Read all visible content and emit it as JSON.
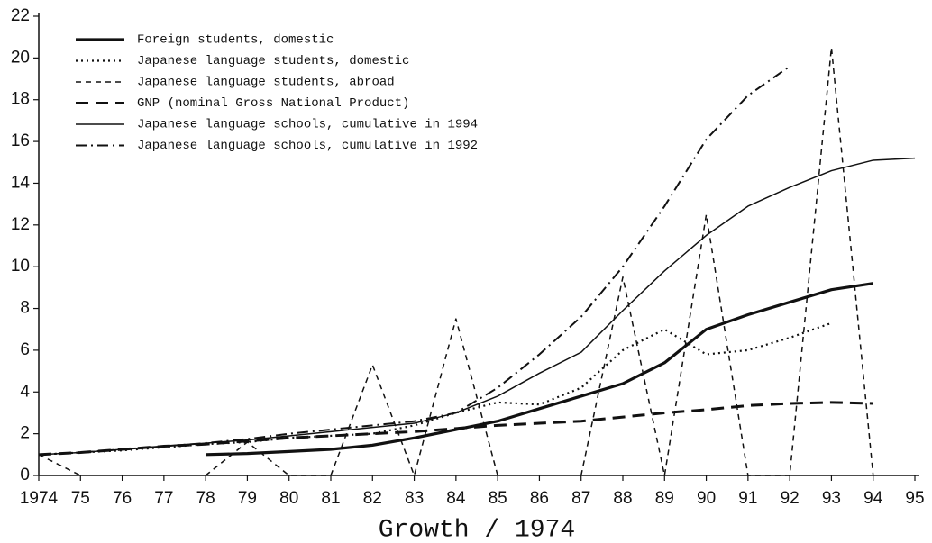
{
  "chart_data": {
    "type": "line",
    "xlabel": "Growth / 1974",
    "categories": [
      "1974",
      "75",
      "76",
      "77",
      "78",
      "79",
      "80",
      "81",
      "82",
      "83",
      "84",
      "85",
      "86",
      "87",
      "88",
      "89",
      "90",
      "91",
      "92",
      "93",
      "94",
      "95"
    ],
    "ylim": [
      0,
      22
    ],
    "yticks": [
      0,
      2,
      4,
      6,
      8,
      10,
      12,
      14,
      16,
      18,
      20,
      22
    ],
    "legend": "upper-left",
    "series": [
      {
        "name": "Foreign students, domestic",
        "color": "#111111",
        "style": "thick-solid",
        "values": [
          null,
          null,
          null,
          null,
          1.0,
          1.05,
          1.15,
          1.25,
          1.45,
          1.8,
          2.2,
          2.6,
          3.2,
          3.8,
          4.4,
          5.4,
          7.0,
          7.7,
          8.3,
          8.9,
          9.2,
          null
        ]
      },
      {
        "name": "Japanese language students, domestic",
        "color": "#111111",
        "style": "dotted",
        "values": [
          1.0,
          1.1,
          1.2,
          1.35,
          1.5,
          1.6,
          1.8,
          1.9,
          2.0,
          2.4,
          3.0,
          3.5,
          3.4,
          4.2,
          6.0,
          7.0,
          5.8,
          6.0,
          6.6,
          7.3,
          null,
          null
        ]
      },
      {
        "name": "Japanese language students, abroad",
        "color": "#111111",
        "style": "dashed",
        "values": [
          1.0,
          0,
          null,
          null,
          0,
          1.6,
          0,
          0,
          5.3,
          0,
          7.5,
          0,
          null,
          0,
          9.5,
          0,
          12.5,
          0,
          0,
          20.5,
          0,
          null
        ]
      },
      {
        "name": "GNP (nominal Gross National Product)",
        "color": "#111111",
        "style": "thick-dashed",
        "values": [
          1.0,
          1.1,
          1.25,
          1.4,
          1.5,
          1.65,
          1.8,
          1.9,
          2.0,
          2.1,
          2.25,
          2.4,
          2.5,
          2.6,
          2.8,
          3.0,
          3.15,
          3.35,
          3.45,
          3.5,
          3.45,
          null
        ]
      },
      {
        "name": "Japanese language schools, cumulative in 1994",
        "color": "#111111",
        "style": "solid",
        "values": [
          1.0,
          1.1,
          1.25,
          1.4,
          1.55,
          1.7,
          1.9,
          2.1,
          2.3,
          2.5,
          3.0,
          3.8,
          4.9,
          5.9,
          7.9,
          9.8,
          11.5,
          12.9,
          13.8,
          14.6,
          15.1,
          15.2
        ]
      },
      {
        "name": "Japanese language schools, cumulative  in 1992",
        "color": "#111111",
        "style": "dash-dot",
        "values": [
          1.0,
          1.1,
          1.25,
          1.4,
          1.55,
          1.75,
          2.0,
          2.2,
          2.4,
          2.6,
          3.0,
          4.2,
          5.8,
          7.6,
          10.0,
          12.9,
          16.1,
          18.2,
          19.6,
          null,
          null,
          null
        ]
      }
    ]
  }
}
